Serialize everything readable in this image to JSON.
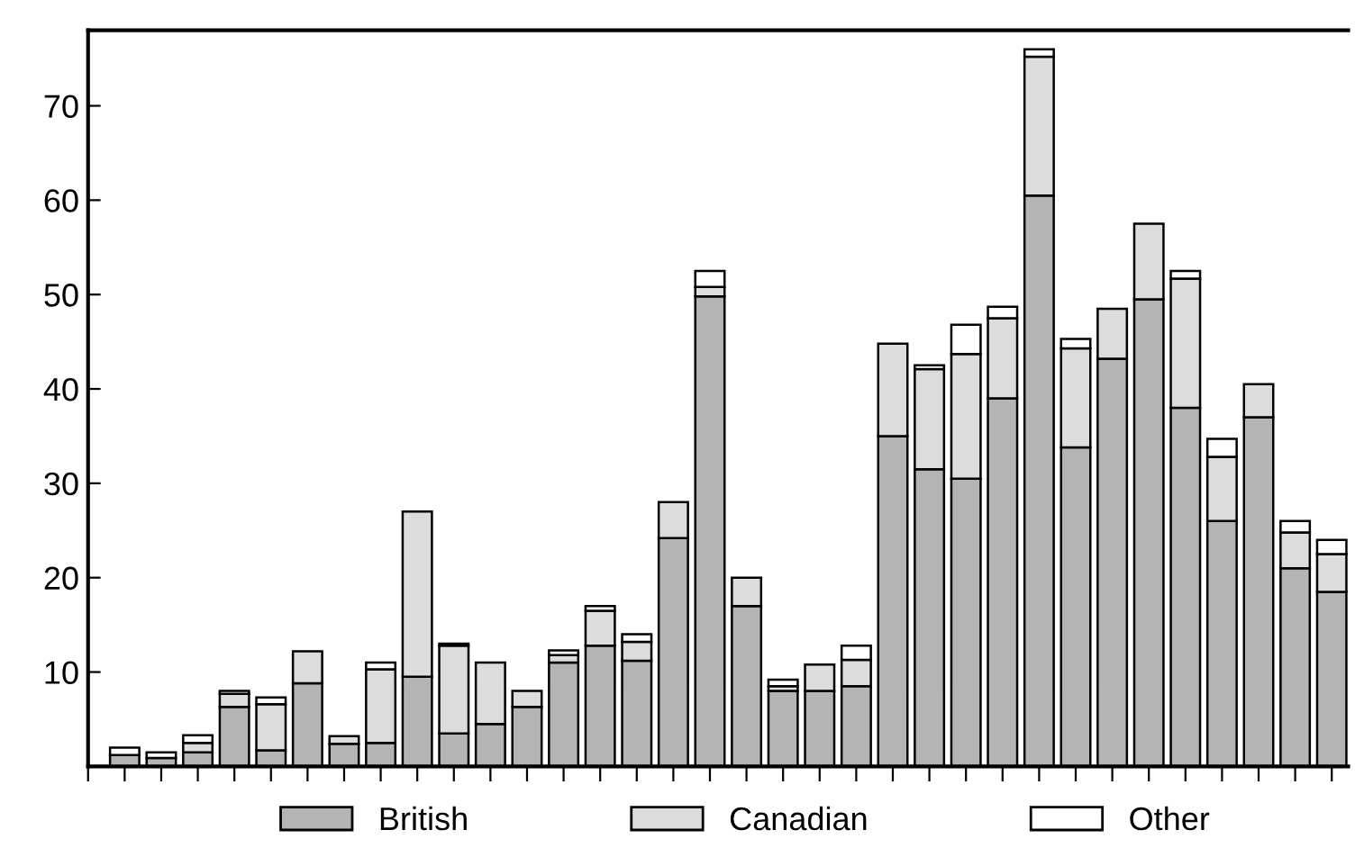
{
  "chart_data": {
    "type": "bar",
    "stacked": true,
    "categories": [
      null,
      null,
      null,
      null,
      null,
      null,
      null,
      null,
      null,
      null,
      null,
      null,
      null,
      null,
      null,
      null,
      null,
      null,
      null,
      null,
      null,
      null,
      null,
      null,
      null,
      null,
      null,
      null,
      null,
      null,
      null,
      null,
      null,
      null,
      null
    ],
    "series": [
      {
        "name": "British",
        "color": "#b4b4b4",
        "values": [
          null,
          1.2,
          0.9,
          1.5,
          6.3,
          1.7,
          8.8,
          2.4,
          2.5,
          9.5,
          3.5,
          4.5,
          6.3,
          11,
          12.8,
          11.2,
          24.2,
          49.8,
          17,
          8,
          8,
          8.5,
          35,
          31.5,
          30.5,
          39,
          60.5,
          33.8,
          43.2,
          49.5,
          38,
          26,
          37,
          21,
          18.5
        ]
      },
      {
        "name": "Canadian",
        "color": "#dcdcdc",
        "values": [
          null,
          null,
          null,
          1.0,
          1.4,
          4.9,
          3.4,
          0.8,
          7.8,
          17.5,
          9.3,
          6.5,
          1.7,
          0.8,
          3.7,
          2,
          3.8,
          1.0,
          3,
          0.5,
          2.8,
          2.8,
          9.8,
          10.6,
          13.2,
          8.5,
          14.7,
          10.5,
          5.3,
          8,
          13.7,
          6.8,
          3.5,
          3.8,
          4
        ]
      },
      {
        "name": "Other",
        "color": "#ffffff",
        "values": [
          null,
          0.8,
          0.6,
          0.8,
          0.3,
          0.7,
          null,
          null,
          0.7,
          null,
          0.2,
          null,
          null,
          0.5,
          0.5,
          0.8,
          null,
          1.7,
          null,
          0.7,
          null,
          1.5,
          null,
          0.4,
          3.1,
          1.2,
          0.8,
          1.0,
          null,
          null,
          0.8,
          1.9,
          null,
          1.2,
          1.5
        ]
      }
    ],
    "ylim": [
      0,
      78
    ],
    "yticks": [
      10,
      20,
      30,
      40,
      50,
      60,
      70
    ],
    "tick_labels": "y",
    "grid": false,
    "legend": "bottom"
  }
}
